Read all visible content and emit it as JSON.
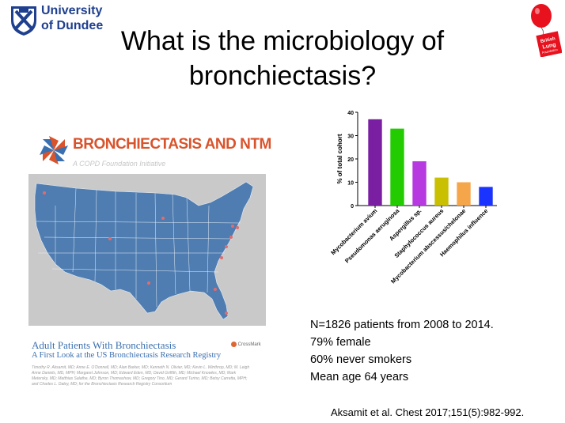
{
  "header": {
    "university_name_line1": "University",
    "university_name_line2": "of Dundee",
    "blf_logo_line1": "British",
    "blf_logo_line2": "Lung",
    "blf_logo_line3": "Foundation"
  },
  "slide": {
    "title_line1": "What is the microbiology of",
    "title_line2": "bronchiectasis?"
  },
  "collage": {
    "ntm_title": "BRONCHIECTASIS AND NTM",
    "ntm_subtitle": "A COPD Foundation Initiative",
    "paper_title_line1": "Adult Patients With Bronchiectasis",
    "paper_title_line2": "A First Look at the US Bronchiectasis Research Registry",
    "crossmark_label": "CrossMark",
    "paper_authors": "Timothy R. Aksamit, MD; Anne E. O'Donnell, MD; Alan Barker, MD; Kenneth N. Olivier, MD; Kevin L. Winthrop, MD; M. Leigh Anne Daniels, MD, MPH; Margaret Johnson, MD; Edward Eden, MD; David Griffith, MD; Michael Knowles, MD; Mark Metersky, MD; Matthias Salathe, MD; Byron Thomashow, MD; Gregory Tino, MD; Gerard Turino, MD; Betsy Carretta, MPH; and Charles L. Daley, MD; for the Bronchiectasis Research Registry Consortium"
  },
  "chart_data": {
    "type": "bar",
    "ylabel": "% of total cohort",
    "xlabel": "",
    "ylim": [
      0,
      40
    ],
    "yticks": [
      0,
      10,
      20,
      30,
      40
    ],
    "grid": false,
    "categories": [
      "Mycobacterium avium",
      "Pseudomonas aeruginosa",
      "Aspergillus sp.",
      "Staphylococcus aureus",
      "Mycobacterium abscessus/chelonae",
      "Haemophilus influence"
    ],
    "values": [
      37,
      33,
      19,
      12,
      10,
      8
    ],
    "colors": [
      "#7a1fa2",
      "#22cc00",
      "#b63ae0",
      "#c8c000",
      "#f5a64a",
      "#1a33ff"
    ]
  },
  "stats": {
    "line1": "N=1826 patients from 2008 to 2014.",
    "line2": "79% female",
    "line3": "60% never smokers",
    "line4": "Mean age 64 years"
  },
  "citation": "Aksamit et al. Chest 2017;151(5):982-992."
}
